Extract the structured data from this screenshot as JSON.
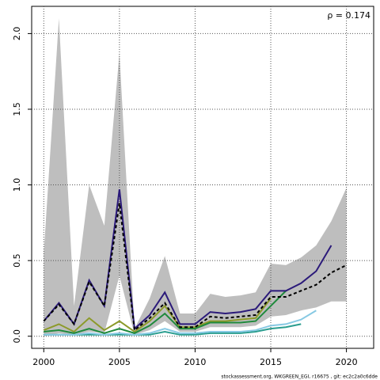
{
  "chart_data": {
    "type": "line",
    "annotation": "ρ = 0.174",
    "footer": "stockassessment.org, WKGREEN_EGI, r16675 , git: ec2c2a0c6dde",
    "x": [
      2000,
      2001,
      2002,
      2003,
      2004,
      2005,
      2006,
      2007,
      2008,
      2009,
      2010,
      2011,
      2012,
      2013,
      2014,
      2015,
      2016,
      2017,
      2018,
      2019,
      2020
    ],
    "xlim": [
      1999.2,
      2021.8
    ],
    "xticks": [
      2000,
      2005,
      2010,
      2015,
      2020
    ],
    "ylim": [
      -0.08,
      2.18
    ],
    "yticks": [
      {
        "value": 0,
        "label": "0.0"
      },
      0.5,
      {
        "value": 1,
        "label": "1.0"
      },
      1.5,
      {
        "value": 2,
        "label": "2.0"
      }
    ],
    "grid": true,
    "band": {
      "color": "#bebebe",
      "upper": [
        0.55,
        2.1,
        0.2,
        1.0,
        0.73,
        1.87,
        0.05,
        0.25,
        0.53,
        0.15,
        0.15,
        0.28,
        0.26,
        0.27,
        0.29,
        0.48,
        0.47,
        0.52,
        0.6,
        0.76,
        0.98
      ],
      "lower": [
        0.0,
        0.02,
        0.01,
        0.03,
        0.02,
        0.4,
        0.01,
        0.04,
        0.1,
        0.03,
        0.03,
        0.06,
        0.06,
        0.06,
        0.07,
        0.13,
        0.14,
        0.17,
        0.19,
        0.23,
        0.23
      ]
    },
    "series": [
      {
        "color": "#2a9d8f",
        "values": [
          0.01,
          0.01,
          0.01,
          0.01,
          0.01,
          0.01,
          0.01,
          0.01,
          0.03,
          0.01,
          0.01,
          0.02,
          0.02,
          0.02,
          0.03,
          0.05,
          0.06,
          0.08,
          null,
          null,
          null
        ]
      },
      {
        "color": "#87c9e3",
        "values": [
          0.01,
          0.01,
          0.01,
          0.02,
          0.01,
          0.02,
          0.01,
          0.02,
          0.05,
          0.02,
          0.02,
          0.03,
          0.03,
          0.03,
          0.04,
          0.07,
          0.08,
          0.11,
          0.17,
          null,
          null
        ]
      },
      {
        "color": "#8c9a2a",
        "values": [
          0.04,
          0.08,
          0.03,
          0.12,
          0.04,
          0.1,
          0.03,
          0.1,
          0.2,
          0.06,
          0.06,
          0.1,
          0.1,
          0.11,
          0.12,
          0.25,
          null,
          null,
          null,
          null,
          null
        ]
      },
      {
        "color": "#1f8a3c",
        "values": [
          0.03,
          0.04,
          0.02,
          0.05,
          0.02,
          0.05,
          0.02,
          0.07,
          0.15,
          0.05,
          0.05,
          0.09,
          0.09,
          0.09,
          0.1,
          0.2,
          0.3,
          null,
          null,
          null,
          null
        ]
      },
      {
        "color": "#2b1a7a",
        "values": [
          0.1,
          0.22,
          0.08,
          0.37,
          0.2,
          0.97,
          0.05,
          0.14,
          0.29,
          0.08,
          0.08,
          0.16,
          0.15,
          0.16,
          0.18,
          0.3,
          0.3,
          0.35,
          0.43,
          0.6,
          null
        ]
      },
      {
        "color": "#000000",
        "dashed": true,
        "values": [
          0.1,
          0.21,
          0.08,
          0.36,
          0.2,
          0.88,
          0.04,
          0.12,
          0.22,
          0.06,
          0.06,
          0.13,
          0.12,
          0.13,
          0.14,
          0.26,
          0.26,
          0.3,
          0.34,
          0.42,
          0.47
        ]
      }
    ]
  }
}
